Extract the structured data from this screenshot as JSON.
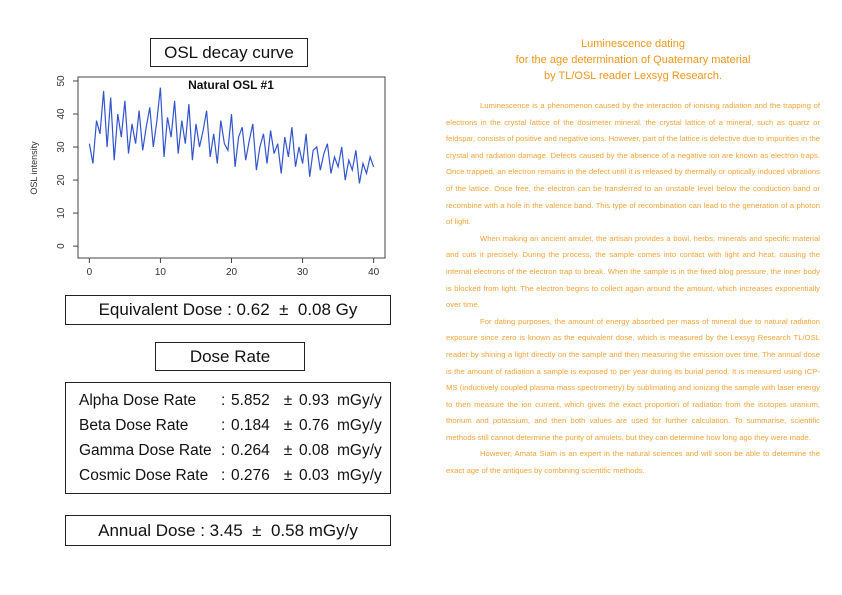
{
  "chart_data": {
    "type": "line",
    "title": "Natural OSL #1",
    "y_label": "OSL intensity",
    "x": [
      0,
      0.5,
      1,
      1.5,
      2,
      2.5,
      3,
      3.5,
      4,
      4.5,
      5,
      5.5,
      6,
      6.5,
      7,
      7.5,
      8,
      8.5,
      9,
      9.5,
      10,
      10.5,
      11,
      11.5,
      12,
      12.5,
      13,
      13.5,
      14,
      14.5,
      15,
      15.5,
      16,
      16.5,
      17,
      17.5,
      18,
      18.5,
      19,
      19.5,
      20,
      20.5,
      21,
      21.5,
      22,
      22.5,
      23,
      23.5,
      24,
      24.5,
      25,
      25.5,
      26,
      26.5,
      27,
      27.5,
      28,
      28.5,
      29,
      29.5,
      30,
      30.5,
      31,
      31.5,
      32,
      32.5,
      33,
      33.5,
      34,
      34.5,
      35,
      35.5,
      36,
      36.5,
      37,
      37.5,
      38,
      38.5,
      39,
      39.5,
      40
    ],
    "series": [
      {
        "name": "Natural OSL #1",
        "color": "#3355cc",
        "values": [
          31,
          25,
          38,
          34,
          47,
          30,
          45,
          26,
          40,
          33,
          44,
          28,
          37,
          31,
          41,
          29,
          36,
          42,
          30,
          38,
          48,
          27,
          39,
          33,
          44,
          28,
          38,
          31,
          43,
          26,
          37,
          30,
          35,
          41,
          27,
          34,
          25,
          38,
          31,
          29,
          40,
          24,
          33,
          36,
          26,
          32,
          37,
          23,
          30,
          34,
          25,
          35,
          28,
          31,
          22,
          33,
          27,
          36,
          24,
          30,
          25,
          34,
          21,
          29,
          30,
          23,
          28,
          31,
          22,
          27,
          24,
          30,
          20,
          26,
          23,
          29,
          19,
          25,
          22,
          27,
          24
        ]
      }
    ],
    "xlim": [
      -1.6,
      41.6
    ],
    "xticks": [
      0,
      10,
      20,
      30,
      40
    ],
    "ylim": [
      -3.6,
      51.2
    ],
    "yticks": [
      0,
      10,
      20,
      30,
      40,
      50
    ]
  },
  "left": {
    "curve_title": "OSL decay curve",
    "equivalent_dose": "Equivalent Dose : 0.62  ±  0.08 Gy",
    "dose_rate_title": "Dose Rate",
    "dose_rates": [
      {
        "label": "Alpha Dose Rate",
        "sep": ":",
        "value": "5.852",
        "pm": "±",
        "error": "0.93",
        "unit": "mGy/y"
      },
      {
        "label": "Beta Dose Rate",
        "sep": ":",
        "value": "0.184",
        "pm": "±",
        "error": "0.76",
        "unit": "mGy/y"
      },
      {
        "label": "Gamma Dose Rate",
        "sep": ":",
        "value": "0.264",
        "pm": "±",
        "error": "0.08",
        "unit": "mGy/y"
      },
      {
        "label": "Cosmic Dose Rate",
        "sep": ":",
        "value": "0.276",
        "pm": "±",
        "error": "0.03",
        "unit": "mGy/y"
      }
    ],
    "annual_dose": "Annual Dose : 3.45  ±  0.58 mGy/y"
  },
  "article": {
    "title": [
      "Luminescence dating",
      "for the age determination of Quaternary material",
      "by TL/OSL reader Lexsyg Research."
    ],
    "paragraphs": [
      "Luminescence is a phenomenon caused by the interaction of ionising radiation and the trapping of electrons in the crystal lattice of the dosimeter mineral. the crystal lattice of a mineral, such as quartz or feldspar, consists of positive and negative ions. However, part of the lattice is defective due to impurities in the crystal and radiation damage. Defects caused by the absence of a negative ion are known as electron traps. Once trapped, an electron remains in the defect until it is released by thermally or optically induced vibrations of the lattice. Once free, the electron can be transferred to an unstable level below the conduction band or recombine with a hole in the valence band. This type of recombination can lead to the generation of a photon of light.",
      "When making an ancient amulet, the artisan provides a bowl, herbs, minerals and specific material and cuts it precisely. During the process, the sample comes into contact with light and heat, causing the internal electrons of the electron trap to break. When the sample is in the fixed blog pressure, the inner body is blocked from light. The electron begins to collect again around the amount, which increases exponentially over time.",
      "For dating purposes, the amount of energy absorbed per mass of mineral due to natural radiation exposure since zero is known as the equivalent dose, which is measured by the Lexsyg Research TL/OSL reader by shining a light directly on the sample and then measuring the emission over time. The annual dose is the amount of radiation a sample is exposed to per year during its burial period. It is measured using ICP-MS (inductively coupled plasma mass spectrometry) by sublimating and ionizing the sample with laser energy to then measure the ion current, which gives the exact proportion of radiation from the isotopes uranium, thorium and potassium, and then both values are used for further calculation. To summarise, scientific methods still cannot determine the purity of amulets, but they can determine how long ago they were made.",
      "However, Amata Siam is an expert in the natural sciences and will soon be able to determine the exact age of the antiques by combining scientific methods."
    ]
  }
}
